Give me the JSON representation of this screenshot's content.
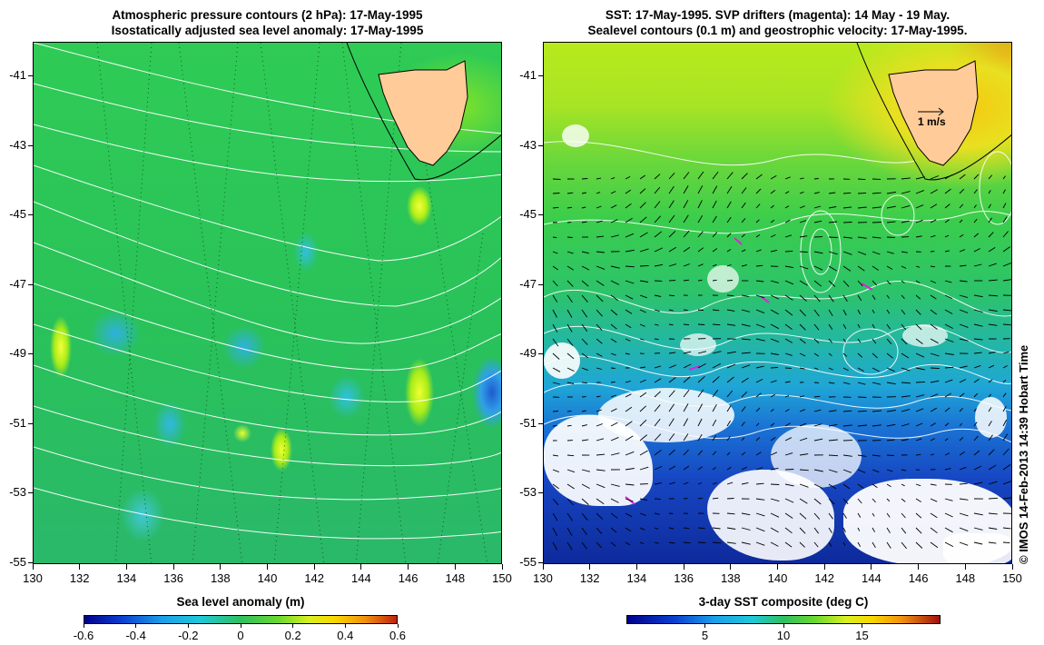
{
  "left_panel": {
    "title_line1": "Atmospheric pressure contours (2 hPa): 17-May-1995",
    "title_line2": "Isostatically adjusted sea level anomaly: 17-May-1995",
    "colorbar_title": "Sea level anomaly (m)",
    "colorbar_ticks": [
      "-0.6",
      "-0.4",
      "-0.2",
      "0",
      "0.2",
      "0.4",
      "0.6"
    ]
  },
  "right_panel": {
    "title_line1": "SST: 17-May-1995. SVP drifters (magenta): 14 May - 19 May.",
    "title_line2": "Sealevel contours (0.1 m) and geostrophic velocity: 17-May-1995.",
    "colorbar_title": "3-day SST composite (deg C)",
    "colorbar_ticks": [
      "5",
      "10",
      "15"
    ],
    "velocity_scale_label": "1 m/s"
  },
  "axes": {
    "x_ticks": [
      "130",
      "132",
      "134",
      "136",
      "138",
      "140",
      "142",
      "144",
      "146",
      "148",
      "150"
    ],
    "y_ticks": [
      "-41",
      "-43",
      "-45",
      "-47",
      "-49",
      "-51",
      "-53",
      "-55"
    ]
  },
  "credit": "© IMOS 14-Feb-2013 14:39 Hobart Time",
  "colors": {
    "land": "#ffcc99",
    "contour_white": "#ffffff",
    "drifter_magenta": "#e020e0"
  }
}
